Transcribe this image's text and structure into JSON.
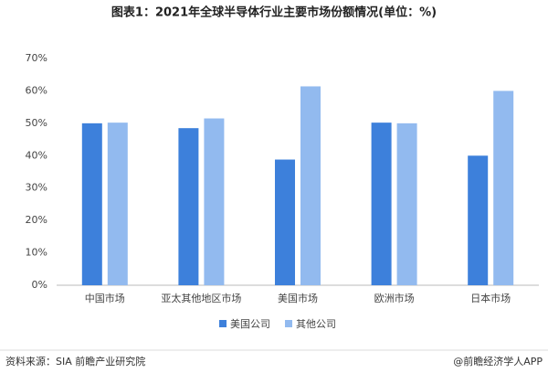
{
  "chart_data": {
    "type": "bar",
    "title": "图表1：2021年全球半导体行业主要市场份额情况(单位：%)",
    "categories": [
      "中国市场",
      "亚太其他地区市场",
      "美国市场",
      "欧洲市场",
      "日本市场"
    ],
    "series": [
      {
        "name": "美国公司",
        "color": "#3d80db",
        "values": [
          50,
          48.5,
          38.8,
          50.2,
          40
        ]
      },
      {
        "name": "其他公司",
        "color": "#92baef",
        "values": [
          50.2,
          51.5,
          61.4,
          50,
          60
        ]
      }
    ],
    "ylim": [
      0,
      70
    ],
    "yticks": [
      {
        "value": 0,
        "label": "0%"
      },
      {
        "value": 10,
        "label": "10%"
      },
      {
        "value": 20,
        "label": "20%"
      },
      {
        "value": 30,
        "label": "30%"
      },
      {
        "value": 40,
        "label": "40%"
      },
      {
        "value": 50,
        "label": "50%"
      },
      {
        "value": 60,
        "label": "60%"
      },
      {
        "value": 70,
        "label": "70%"
      }
    ],
    "source": "资料来源：SIA 前瞻产业研究院",
    "credit": "@前瞻经济学人APP"
  }
}
